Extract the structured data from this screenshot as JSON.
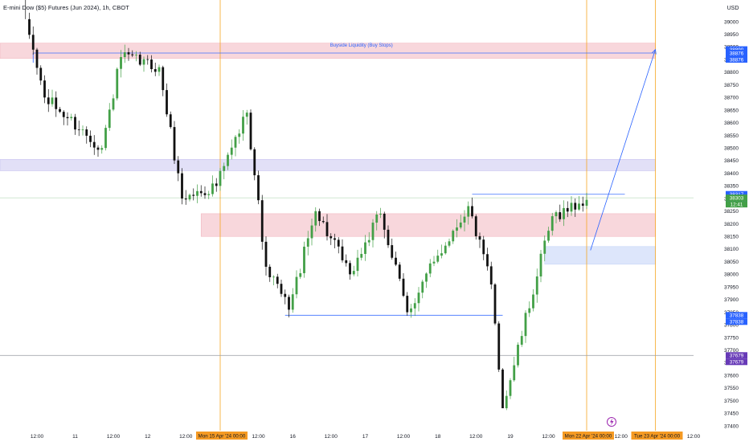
{
  "header": {
    "title": "E-mini Dow ($5) Futures (Jun 2024), 1h, CBOT"
  },
  "colors": {
    "background": "#ffffff",
    "up": "#43a047",
    "down": "#111111",
    "vline": "#f5a623",
    "blue": "#2962ff",
    "red_zone": "#f8d7dc",
    "purple_zone": "#e2e0f7",
    "blue_zone": "#dde6fb",
    "text": "#131722",
    "muted": "#555a66"
  },
  "chart_data": {
    "type": "candlestick",
    "y_unit_label": "USD",
    "y_range": [
      37425,
      39050
    ],
    "y_ticks": [
      39000,
      38950,
      38900,
      38850,
      38800,
      38750,
      38700,
      38650,
      38600,
      38550,
      38500,
      38450,
      38400,
      38350,
      38300,
      38250,
      38200,
      38150,
      38100,
      38050,
      38000,
      37950,
      37900,
      37850,
      37800,
      37750,
      37700,
      37650,
      37600,
      37550,
      37500,
      37450,
      37400
    ],
    "x_bar_range": [
      0,
      180
    ],
    "x_ticks": [
      {
        "bar": 8,
        "label": "12:00"
      },
      {
        "bar": 18,
        "label": "11"
      },
      {
        "bar": 28,
        "label": "12:00"
      },
      {
        "bar": 37,
        "label": "12"
      },
      {
        "bar": 47,
        "label": "12:00"
      },
      {
        "bar": 66,
        "label": "12:00"
      },
      {
        "bar": 75,
        "label": "16"
      },
      {
        "bar": 85,
        "label": "12:00"
      },
      {
        "bar": 94,
        "label": "17"
      },
      {
        "bar": 104,
        "label": "12:00"
      },
      {
        "bar": 113,
        "label": "18"
      },
      {
        "bar": 123,
        "label": "12:00"
      },
      {
        "bar": 132,
        "label": "19"
      },
      {
        "bar": 142,
        "label": "12:00"
      },
      {
        "bar": 161,
        "label": "12:00"
      },
      {
        "bar": 180,
        "label": "12:00"
      }
    ],
    "x_highlight_labels": [
      {
        "bar": 56,
        "label": "Mon 15 Apr '24   00:00"
      },
      {
        "bar": 152,
        "label": "Mon 22 Apr '24   00:00"
      },
      {
        "bar": 170,
        "label": "Tue 23 Apr '24   00:00"
      }
    ],
    "vertical_lines": [
      56,
      152,
      170
    ],
    "key_anchors": [
      {
        "bar": 5,
        "price": 39010,
        "note": "high"
      },
      {
        "bar": 10,
        "price": 38700
      },
      {
        "bar": 25,
        "price": 38500
      },
      {
        "bar": 30,
        "price": 38860
      },
      {
        "bar": 40,
        "price": 38820
      },
      {
        "bar": 46,
        "price": 38300
      },
      {
        "bar": 55,
        "price": 38350
      },
      {
        "bar": 63,
        "price": 38640
      },
      {
        "bar": 68,
        "price": 38030
      },
      {
        "bar": 74,
        "price": 37860
      },
      {
        "bar": 81,
        "price": 38250
      },
      {
        "bar": 90,
        "price": 38000
      },
      {
        "bar": 98,
        "price": 38240
      },
      {
        "bar": 105,
        "price": 37850
      },
      {
        "bar": 112,
        "price": 38050
      },
      {
        "bar": 121,
        "price": 38270
      },
      {
        "bar": 127,
        "price": 37960
      },
      {
        "bar": 130,
        "price": 37470,
        "note": "low"
      },
      {
        "bar": 143,
        "price": 38230
      },
      {
        "bar": 152,
        "price": 38295
      }
    ],
    "zones": [
      {
        "name": "buyside-zone",
        "from_bar": 0,
        "to_bar": 170,
        "price_low": 38855,
        "price_high": 38915,
        "color": "red_zone"
      },
      {
        "name": "purple-zone",
        "from_bar": 0,
        "to_bar": 170,
        "price_low": 38410,
        "price_high": 38455,
        "color": "purple_zone"
      },
      {
        "name": "red-zone-mid",
        "from_bar": 51,
        "to_bar": 170,
        "price_low": 38150,
        "price_high": 38240,
        "color": "red_zone"
      },
      {
        "name": "blue-zone",
        "from_bar": 141,
        "to_bar": 170,
        "price_low": 38040,
        "price_high": 38110,
        "color": "blue_zone"
      }
    ],
    "lines": [
      {
        "name": "buyside-liquidity-line",
        "from_bar": 7,
        "to_bar": 170,
        "price": 38876,
        "color": "blue"
      },
      {
        "name": "equal-highs-line",
        "from_bar": 122,
        "to_bar": 162,
        "price": 38317,
        "color": "blue"
      },
      {
        "name": "equal-lows-line",
        "from_bar": 73,
        "to_bar": 130,
        "price": 37838,
        "color": "blue"
      },
      {
        "name": "low-line",
        "from_bar": 0,
        "to_bar": 180,
        "price": 37679,
        "color": "muted"
      },
      {
        "name": "current-price-line",
        "from_bar": 0,
        "to_bar": 180,
        "price": 38303,
        "color": "up"
      }
    ],
    "annotations": [
      {
        "text": "Buyside Liquidity (Buy Stops)",
        "bar": 93,
        "price": 38895
      }
    ],
    "arrow": {
      "from_bar": 153,
      "from_price": 38095,
      "to_bar": 170,
      "to_price": 38890
    },
    "price_labels": [
      {
        "price": 38890,
        "text": "38890",
        "color": "blue"
      },
      {
        "price": 38890,
        "text": "38890",
        "color": "blue",
        "offset": 1
      },
      {
        "price": 38876,
        "text": "38876",
        "color": "blue"
      },
      {
        "price": 38876,
        "text": "38876",
        "color": "blue",
        "offset": 1
      },
      {
        "price": 38317,
        "text": "38317",
        "color": "blue"
      },
      {
        "price": 38317,
        "text": "38317",
        "color": "blue",
        "offset": 1
      },
      {
        "price": 38303,
        "text": "38303",
        "color": "up"
      },
      {
        "price": 38303,
        "text": "12:41",
        "color": "up",
        "offset": 1
      },
      {
        "price": 37838,
        "text": "37838",
        "color": "blue"
      },
      {
        "price": 37838,
        "text": "37838",
        "color": "blue",
        "offset": 1
      },
      {
        "price": 37679,
        "text": "37679",
        "color": "purple"
      },
      {
        "price": 37679,
        "text": "37679",
        "color": "purple",
        "offset": 1
      }
    ]
  }
}
